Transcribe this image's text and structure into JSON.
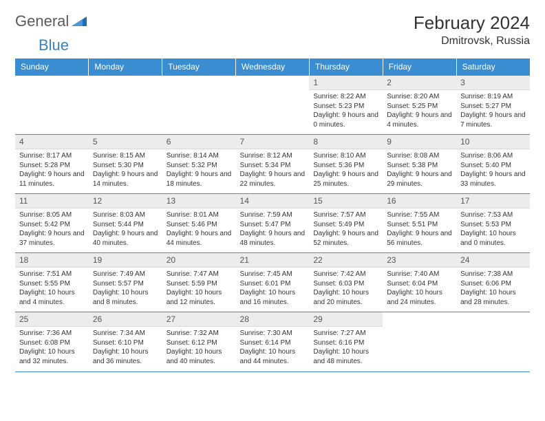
{
  "brand": {
    "part1": "General",
    "part2": "Blue"
  },
  "title": "February 2024",
  "location": "Dmitrovsk, Russia",
  "colors": {
    "header_bg": "#3b8dd1",
    "header_text": "#ffffff",
    "daynum_bg": "#ececec",
    "border": "#3b8dd1",
    "text": "#333333",
    "brand_gray": "#5a5a5a",
    "brand_blue": "#3b7fc4"
  },
  "weekdays": [
    "Sunday",
    "Monday",
    "Tuesday",
    "Wednesday",
    "Thursday",
    "Friday",
    "Saturday"
  ],
  "weeks": [
    [
      null,
      null,
      null,
      null,
      {
        "n": "1",
        "sr": "8:22 AM",
        "ss": "5:23 PM",
        "dl": "9 hours and 0 minutes."
      },
      {
        "n": "2",
        "sr": "8:20 AM",
        "ss": "5:25 PM",
        "dl": "9 hours and 4 minutes."
      },
      {
        "n": "3",
        "sr": "8:19 AM",
        "ss": "5:27 PM",
        "dl": "9 hours and 7 minutes."
      }
    ],
    [
      {
        "n": "4",
        "sr": "8:17 AM",
        "ss": "5:28 PM",
        "dl": "9 hours and 11 minutes."
      },
      {
        "n": "5",
        "sr": "8:15 AM",
        "ss": "5:30 PM",
        "dl": "9 hours and 14 minutes."
      },
      {
        "n": "6",
        "sr": "8:14 AM",
        "ss": "5:32 PM",
        "dl": "9 hours and 18 minutes."
      },
      {
        "n": "7",
        "sr": "8:12 AM",
        "ss": "5:34 PM",
        "dl": "9 hours and 22 minutes."
      },
      {
        "n": "8",
        "sr": "8:10 AM",
        "ss": "5:36 PM",
        "dl": "9 hours and 25 minutes."
      },
      {
        "n": "9",
        "sr": "8:08 AM",
        "ss": "5:38 PM",
        "dl": "9 hours and 29 minutes."
      },
      {
        "n": "10",
        "sr": "8:06 AM",
        "ss": "5:40 PM",
        "dl": "9 hours and 33 minutes."
      }
    ],
    [
      {
        "n": "11",
        "sr": "8:05 AM",
        "ss": "5:42 PM",
        "dl": "9 hours and 37 minutes."
      },
      {
        "n": "12",
        "sr": "8:03 AM",
        "ss": "5:44 PM",
        "dl": "9 hours and 40 minutes."
      },
      {
        "n": "13",
        "sr": "8:01 AM",
        "ss": "5:46 PM",
        "dl": "9 hours and 44 minutes."
      },
      {
        "n": "14",
        "sr": "7:59 AM",
        "ss": "5:47 PM",
        "dl": "9 hours and 48 minutes."
      },
      {
        "n": "15",
        "sr": "7:57 AM",
        "ss": "5:49 PM",
        "dl": "9 hours and 52 minutes."
      },
      {
        "n": "16",
        "sr": "7:55 AM",
        "ss": "5:51 PM",
        "dl": "9 hours and 56 minutes."
      },
      {
        "n": "17",
        "sr": "7:53 AM",
        "ss": "5:53 PM",
        "dl": "10 hours and 0 minutes."
      }
    ],
    [
      {
        "n": "18",
        "sr": "7:51 AM",
        "ss": "5:55 PM",
        "dl": "10 hours and 4 minutes."
      },
      {
        "n": "19",
        "sr": "7:49 AM",
        "ss": "5:57 PM",
        "dl": "10 hours and 8 minutes."
      },
      {
        "n": "20",
        "sr": "7:47 AM",
        "ss": "5:59 PM",
        "dl": "10 hours and 12 minutes."
      },
      {
        "n": "21",
        "sr": "7:45 AM",
        "ss": "6:01 PM",
        "dl": "10 hours and 16 minutes."
      },
      {
        "n": "22",
        "sr": "7:42 AM",
        "ss": "6:03 PM",
        "dl": "10 hours and 20 minutes."
      },
      {
        "n": "23",
        "sr": "7:40 AM",
        "ss": "6:04 PM",
        "dl": "10 hours and 24 minutes."
      },
      {
        "n": "24",
        "sr": "7:38 AM",
        "ss": "6:06 PM",
        "dl": "10 hours and 28 minutes."
      }
    ],
    [
      {
        "n": "25",
        "sr": "7:36 AM",
        "ss": "6:08 PM",
        "dl": "10 hours and 32 minutes."
      },
      {
        "n": "26",
        "sr": "7:34 AM",
        "ss": "6:10 PM",
        "dl": "10 hours and 36 minutes."
      },
      {
        "n": "27",
        "sr": "7:32 AM",
        "ss": "6:12 PM",
        "dl": "10 hours and 40 minutes."
      },
      {
        "n": "28",
        "sr": "7:30 AM",
        "ss": "6:14 PM",
        "dl": "10 hours and 44 minutes."
      },
      {
        "n": "29",
        "sr": "7:27 AM",
        "ss": "6:16 PM",
        "dl": "10 hours and 48 minutes."
      },
      null,
      null
    ]
  ],
  "labels": {
    "sunrise": "Sunrise:",
    "sunset": "Sunset:",
    "daylight": "Daylight:"
  }
}
